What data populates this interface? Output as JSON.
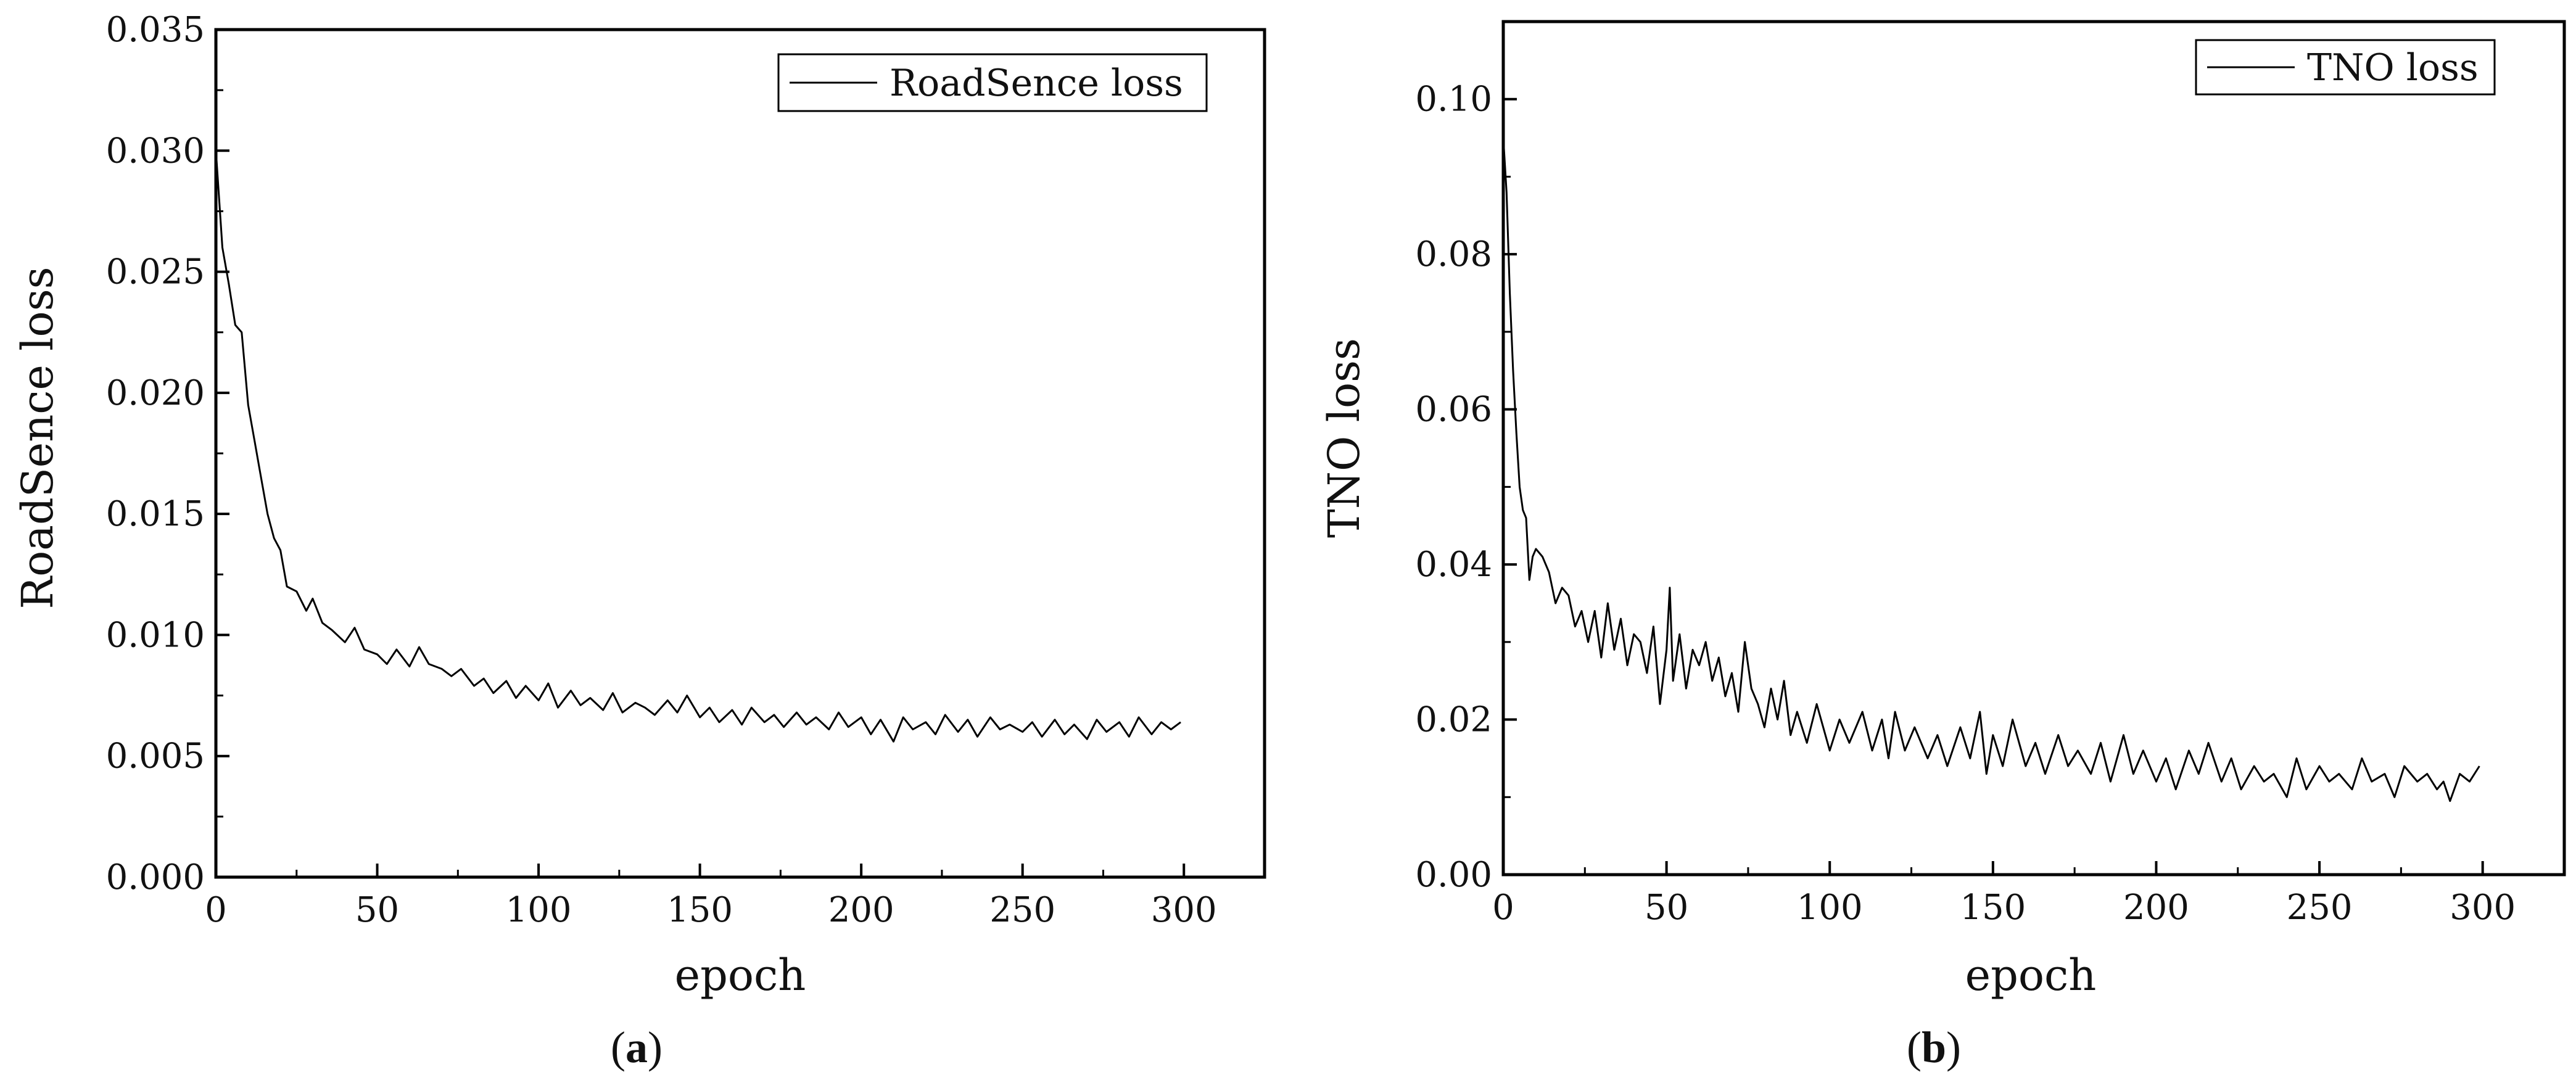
{
  "chart_data": [
    {
      "type": "line",
      "panel_label_prefix": "(",
      "panel_letter": "a",
      "panel_label_suffix": ")",
      "xlabel": "epoch",
      "ylabel": "RoadSence loss",
      "xlim": [
        0,
        325
      ],
      "ylim": [
        0,
        0.035
      ],
      "x_ticks": [
        0,
        50,
        100,
        150,
        200,
        250,
        300
      ],
      "x_tick_labels": [
        "0",
        "50",
        "100",
        "150",
        "200",
        "250",
        "300"
      ],
      "y_ticks": [
        0,
        0.005,
        0.01,
        0.015,
        0.02,
        0.025,
        0.03,
        0.035
      ],
      "y_tick_labels": [
        "0.000",
        "0.005",
        "0.010",
        "0.015",
        "0.020",
        "0.025",
        "0.030",
        "0.035"
      ],
      "grid": false,
      "legend_position": "top-right",
      "series": [
        {
          "name": "RoadSence loss",
          "color": "#000000",
          "x": [
            0,
            2,
            4,
            6,
            8,
            10,
            12,
            14,
            16,
            18,
            20,
            22,
            25,
            28,
            30,
            33,
            36,
            40,
            43,
            46,
            50,
            53,
            56,
            60,
            63,
            66,
            70,
            73,
            76,
            80,
            83,
            86,
            90,
            93,
            96,
            100,
            103,
            106,
            110,
            113,
            116,
            120,
            123,
            126,
            130,
            133,
            136,
            140,
            143,
            146,
            150,
            153,
            156,
            160,
            163,
            166,
            170,
            173,
            176,
            180,
            183,
            186,
            190,
            193,
            196,
            200,
            203,
            206,
            210,
            213,
            216,
            220,
            223,
            226,
            230,
            233,
            236,
            240,
            243,
            246,
            250,
            253,
            256,
            260,
            263,
            266,
            270,
            273,
            276,
            280,
            283,
            286,
            290,
            293,
            296,
            299
          ],
          "y": [
            0.03,
            0.026,
            0.0245,
            0.0228,
            0.0225,
            0.0195,
            0.018,
            0.0165,
            0.015,
            0.014,
            0.0135,
            0.012,
            0.0118,
            0.011,
            0.0115,
            0.0105,
            0.0102,
            0.0097,
            0.0103,
            0.0094,
            0.0092,
            0.0088,
            0.0094,
            0.0087,
            0.0095,
            0.0088,
            0.0086,
            0.0083,
            0.0086,
            0.0079,
            0.0082,
            0.0076,
            0.0081,
            0.0074,
            0.0079,
            0.0073,
            0.008,
            0.007,
            0.0077,
            0.0071,
            0.0074,
            0.0069,
            0.0076,
            0.0068,
            0.0072,
            0.007,
            0.0067,
            0.0073,
            0.0068,
            0.0075,
            0.0066,
            0.007,
            0.0064,
            0.0069,
            0.0063,
            0.007,
            0.0064,
            0.0067,
            0.0062,
            0.0068,
            0.0063,
            0.0066,
            0.0061,
            0.0068,
            0.0062,
            0.0066,
            0.0059,
            0.0065,
            0.0056,
            0.0066,
            0.0061,
            0.0064,
            0.0059,
            0.0067,
            0.006,
            0.0065,
            0.0058,
            0.0066,
            0.0061,
            0.0063,
            0.006,
            0.0064,
            0.0058,
            0.0065,
            0.0059,
            0.0063,
            0.0057,
            0.0065,
            0.006,
            0.0064,
            0.0058,
            0.0066,
            0.0059,
            0.0064,
            0.0061,
            0.0064
          ]
        }
      ]
    },
    {
      "type": "line",
      "panel_label_prefix": "(",
      "panel_letter": "b",
      "panel_label_suffix": ")",
      "xlabel": "epoch",
      "ylabel": "TNO loss",
      "xlim": [
        0,
        325
      ],
      "ylim": [
        0,
        0.11
      ],
      "x_ticks": [
        0,
        50,
        100,
        150,
        200,
        250,
        300
      ],
      "x_tick_labels": [
        "0",
        "50",
        "100",
        "150",
        "200",
        "250",
        "300"
      ],
      "y_ticks": [
        0,
        0.02,
        0.04,
        0.06,
        0.08,
        0.1
      ],
      "y_tick_labels": [
        "0.00",
        "0.02",
        "0.04",
        "0.06",
        "0.08",
        "0.10"
      ],
      "grid": false,
      "legend_position": "top-right",
      "series": [
        {
          "name": "TNO loss",
          "color": "#000000",
          "x": [
            0,
            1,
            2,
            3,
            4,
            5,
            6,
            7,
            8,
            9,
            10,
            12,
            14,
            16,
            18,
            20,
            22,
            24,
            26,
            28,
            30,
            32,
            34,
            36,
            38,
            40,
            42,
            44,
            46,
            48,
            50,
            51,
            52,
            54,
            56,
            58,
            60,
            62,
            64,
            66,
            68,
            70,
            72,
            74,
            76,
            78,
            80,
            82,
            84,
            86,
            88,
            90,
            93,
            96,
            100,
            103,
            106,
            110,
            113,
            116,
            118,
            120,
            123,
            126,
            130,
            133,
            136,
            140,
            143,
            146,
            148,
            150,
            153,
            156,
            160,
            163,
            166,
            170,
            173,
            176,
            180,
            183,
            186,
            190,
            193,
            196,
            200,
            203,
            206,
            210,
            213,
            216,
            220,
            223,
            226,
            230,
            233,
            236,
            240,
            243,
            246,
            250,
            253,
            256,
            260,
            263,
            266,
            270,
            273,
            276,
            280,
            283,
            286,
            288,
            290,
            293,
            296,
            299
          ],
          "y": [
            0.095,
            0.088,
            0.075,
            0.065,
            0.057,
            0.05,
            0.047,
            0.046,
            0.038,
            0.041,
            0.042,
            0.041,
            0.039,
            0.035,
            0.037,
            0.036,
            0.032,
            0.034,
            0.03,
            0.034,
            0.028,
            0.035,
            0.029,
            0.033,
            0.027,
            0.031,
            0.03,
            0.026,
            0.032,
            0.022,
            0.029,
            0.037,
            0.025,
            0.031,
            0.024,
            0.029,
            0.027,
            0.03,
            0.025,
            0.028,
            0.023,
            0.026,
            0.021,
            0.03,
            0.024,
            0.022,
            0.019,
            0.024,
            0.02,
            0.025,
            0.018,
            0.021,
            0.017,
            0.022,
            0.016,
            0.02,
            0.017,
            0.021,
            0.016,
            0.02,
            0.015,
            0.021,
            0.016,
            0.019,
            0.015,
            0.018,
            0.014,
            0.019,
            0.015,
            0.021,
            0.013,
            0.018,
            0.014,
            0.02,
            0.014,
            0.017,
            0.013,
            0.018,
            0.014,
            0.016,
            0.013,
            0.017,
            0.012,
            0.018,
            0.013,
            0.016,
            0.012,
            0.015,
            0.011,
            0.016,
            0.013,
            0.017,
            0.012,
            0.015,
            0.011,
            0.014,
            0.012,
            0.013,
            0.01,
            0.015,
            0.011,
            0.014,
            0.012,
            0.013,
            0.011,
            0.015,
            0.012,
            0.013,
            0.01,
            0.014,
            0.012,
            0.013,
            0.011,
            0.012,
            0.0095,
            0.013,
            0.012,
            0.014
          ]
        }
      ]
    }
  ]
}
